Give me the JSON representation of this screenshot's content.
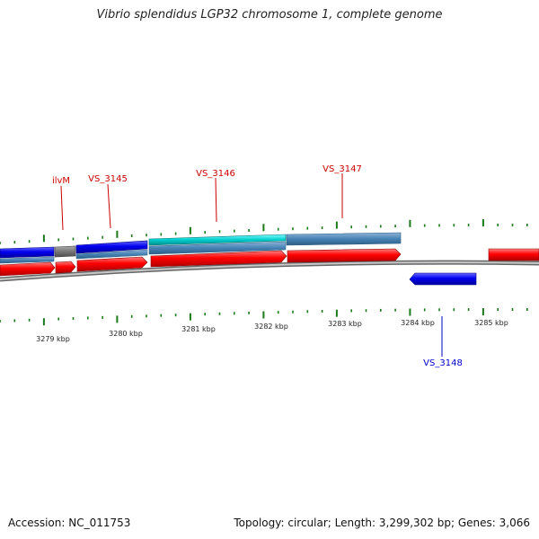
{
  "title": "Vibrio splendidus LGP32 chromosome 1, complete genome",
  "footer": {
    "accession": "Accession: NC_011753",
    "summary": "Topology: circular; Length: 3,299,302 bp; Genes: 3,066"
  },
  "colors": {
    "cds_forward": "#ff0000",
    "cds_reverse": "#0000ee",
    "gene_track": "#4682b4",
    "cyan_gene": "#00cccc",
    "gray_gene": "#777777",
    "ticks": "#1a7a1a",
    "backbone": "#888888",
    "label_forward": "#cc0000",
    "label_reverse": "#0000cc"
  },
  "kbp_labels": [
    "3279 kbp",
    "3280 kbp",
    "3281 kbp",
    "3282 kbp",
    "3283 kbp",
    "3284 kbp",
    "3285 kbp"
  ],
  "gene_labels": [
    {
      "text": "ilvM",
      "strand": "forward"
    },
    {
      "text": "VS_3145",
      "strand": "forward"
    },
    {
      "text": "VS_3146",
      "strand": "forward"
    },
    {
      "text": "VS_3147",
      "strand": "forward"
    },
    {
      "text": "VS_3148",
      "strand": "reverse"
    }
  ]
}
